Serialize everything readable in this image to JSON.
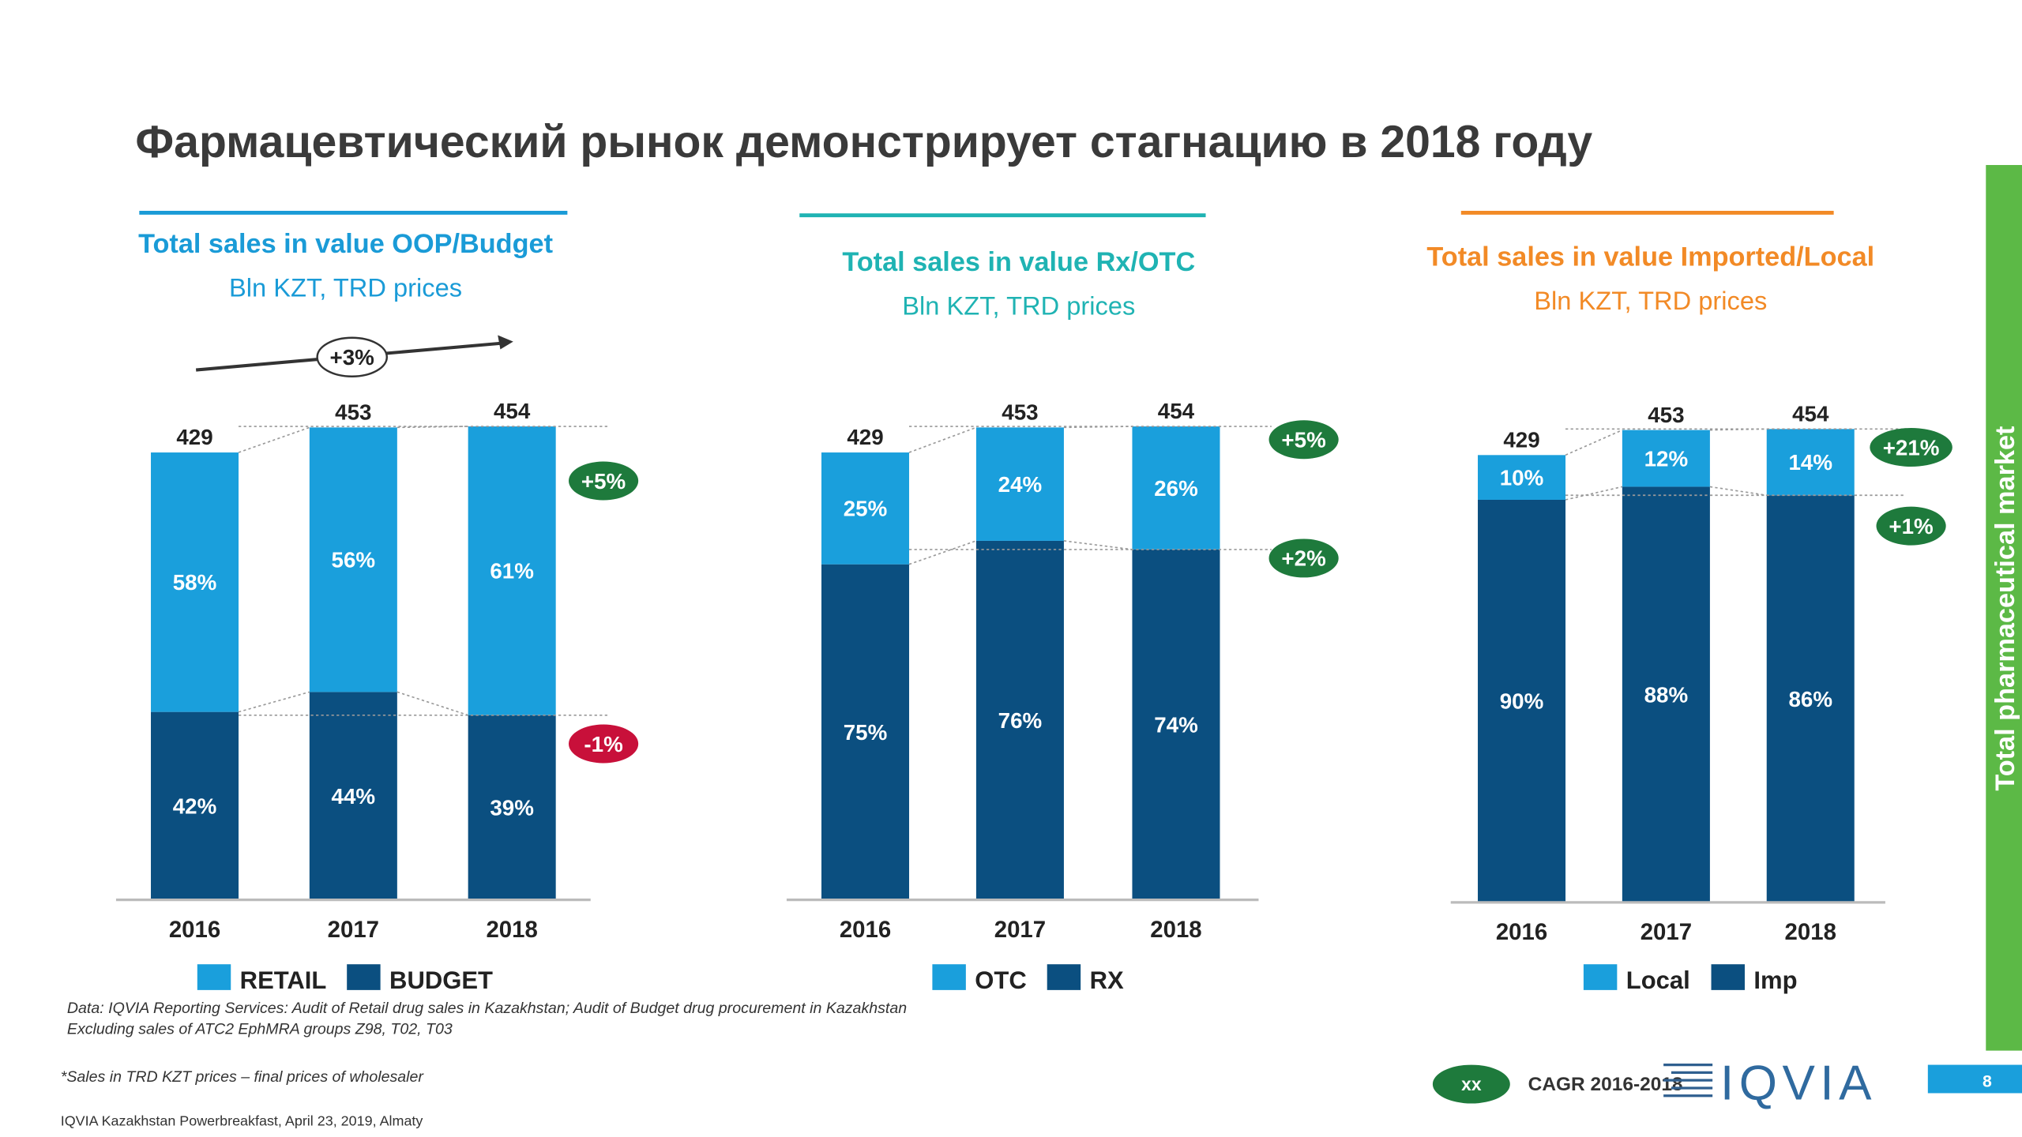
{
  "title": "Фармацевтический рынок демонстрирует  стагнацию в 2018 году",
  "side_label": "Total pharmaceutical market",
  "notes": [
    "Data: IQVIA Reporting Services: Audit of Retail drug sales in Kazakhstan; Audit of Budget drug procurement in Kazakhstan",
    "Excluding sales of ATC2 EphMRA groups Z98, T02, T03",
    "*Sales in TRD KZT prices – final prices of wholesaler"
  ],
  "footer": "IQVIA Kazakhstan  Powerbreakfast, April 23,  2019, Almaty",
  "cagr_legend": {
    "marker": "xx",
    "text": "CAGR 2016-2018"
  },
  "logo": "IQVIA",
  "page_number": "8",
  "chart_data": [
    {
      "type": "stacked_bar",
      "title": "Total sales in value OOP/Budget",
      "subtitle": "Bln KZT, TRD prices",
      "color": "#1a9bd7",
      "categories": [
        "2016",
        "2017",
        "2018"
      ],
      "values": [
        429,
        453,
        454
      ],
      "series": [
        {
          "name": "RETAIL",
          "color": "#1a9fdc",
          "values": [
            58,
            56,
            61
          ],
          "value_labels": [
            "58%",
            "56%",
            "61%"
          ]
        },
        {
          "name": "BUDGET",
          "color": "#0b4f80",
          "values": [
            42,
            44,
            39
          ],
          "value_labels": [
            "42%",
            "44%",
            "39%"
          ]
        }
      ],
      "annotations": [
        {
          "text": "+3%",
          "color": "#ffffff"
        },
        {
          "text": "+5%",
          "color": "#1e7a3c"
        },
        {
          "text": "-1%",
          "color": "#c8103a"
        }
      ]
    },
    {
      "type": "stacked_bar",
      "title": "Total sales in value Rx/OTC",
      "subtitle": "Bln KZT, TRD prices",
      "color": "#1fb3b3",
      "categories": [
        "2016",
        "2017",
        "2018"
      ],
      "values": [
        429,
        453,
        454
      ],
      "series": [
        {
          "name": "OTC",
          "color": "#1a9fdc",
          "values": [
            25,
            24,
            26
          ],
          "value_labels": [
            "25%",
            "24%",
            "26%"
          ]
        },
        {
          "name": "RX",
          "color": "#0b4f80",
          "values": [
            75,
            76,
            74
          ],
          "value_labels": [
            "75%",
            "76%",
            "74%"
          ]
        }
      ],
      "annotations": [
        {
          "text": "+5%",
          "color": "#1e7a3c"
        },
        {
          "text": "+2%",
          "color": "#1e7a3c"
        }
      ]
    },
    {
      "type": "stacked_bar",
      "title": "Total sales in value Imported/Local",
      "subtitle": "Bln KZT, TRD prices",
      "color": "#f28a26",
      "categories": [
        "2016",
        "2017",
        "2018"
      ],
      "values": [
        429,
        453,
        454
      ],
      "series": [
        {
          "name": "Local",
          "color": "#1a9fdc",
          "values": [
            10,
            12,
            14
          ],
          "value_labels": [
            "10%",
            "12%",
            "14%"
          ]
        },
        {
          "name": "Imp",
          "color": "#0b4f80",
          "values": [
            90,
            88,
            86
          ],
          "value_labels": [
            "90%",
            "88%",
            "86%"
          ]
        }
      ],
      "annotations": [
        {
          "text": "+21%",
          "color": "#1e7a3c"
        },
        {
          "text": "+1%",
          "color": "#1e7a3c"
        }
      ]
    }
  ]
}
